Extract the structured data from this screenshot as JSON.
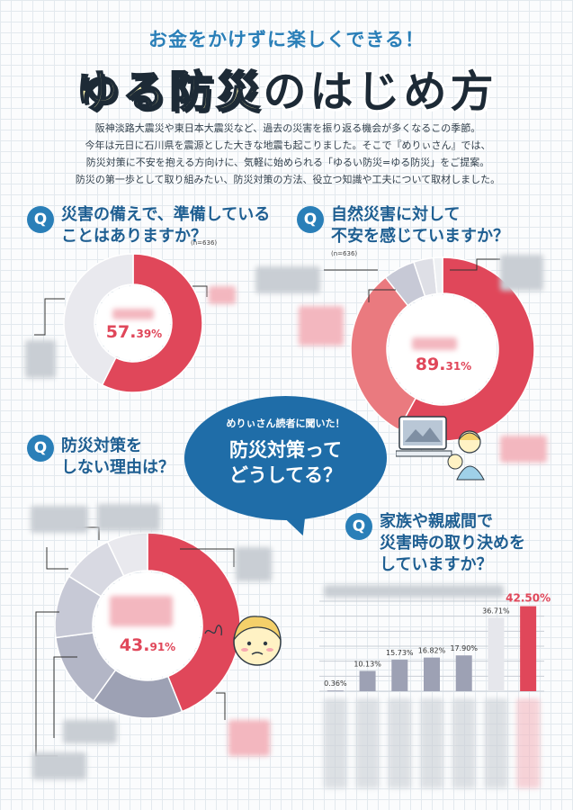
{
  "header": {
    "subtitle": "お金をかけずに楽しくできる！",
    "title_highlight": "ゆる防災",
    "title_rest": "のはじめ方",
    "intro_lines": [
      "阪神淡路大震災や東日本大震災など、過去の災害を振り返る機会が多くなるこの季節。",
      "今年は元日に石川県を震源とした大きな地震も起こりました。そこで『めりぃさん』では、",
      "防災対策に不安を抱える方向けに、気軽に始められる「ゆるい防災=ゆる防災」をご提案。",
      "防災の第一歩として取り組みたい、防災対策の方法、役立つ知識や工夫について取材しました。"
    ]
  },
  "center_bubble": {
    "small": "めりぃさん読者に聞いた！",
    "big_line1": "防災対策って",
    "big_line2": "どうしてる？"
  },
  "colors": {
    "accent_red": "#e0475a",
    "accent_pink": "#ea7a7f",
    "accent_blue": "#2a7fb8",
    "gray_light": "#e9e9ee",
    "gray_mid": "#c7c9d6",
    "gray_dark": "#9da1b4"
  },
  "q_badge": "Q",
  "questions": {
    "q1": {
      "line1": "災害の備えで、準備している",
      "line2": "ことはありますか？",
      "n": "(n=636)"
    },
    "q2": {
      "line1": "自然災害に対して",
      "line2": "不安を感じていますか？",
      "n": "(n=636)"
    },
    "q3": {
      "line1": "防災対策を",
      "line2": "しない理由は？"
    },
    "q4": {
      "line1": "家族や親戚間で",
      "line2": "災害時の取り決めを",
      "line3": "していますか？"
    }
  },
  "chart_data": [
    {
      "type": "pie",
      "title": "災害の備えで、準備していることはありますか？",
      "slices": [
        {
          "label": "",
          "value": 57.39,
          "color": "#e0475a"
        },
        {
          "label": "",
          "value": 42.61,
          "color": "#e9e9ee"
        }
      ],
      "center_label_main": "57.",
      "center_label_sub": "39%"
    },
    {
      "type": "pie",
      "title": "自然災害に対して不安を感じていますか？",
      "slices": [
        {
          "label": "",
          "value": 58.0,
          "color": "#e0475a"
        },
        {
          "label": "",
          "value": 31.31,
          "color": "#ea7a7f"
        },
        {
          "label": "",
          "value": 5.6,
          "color": "#c7c9d6"
        },
        {
          "label": "",
          "value": 3.5,
          "color": "#dedfe6"
        },
        {
          "label": "",
          "value": 1.59,
          "color": "#eef0f3"
        }
      ],
      "center_label_main": "89.",
      "center_label_sub": "31%"
    },
    {
      "type": "pie",
      "title": "防災対策をしない理由は？",
      "slices": [
        {
          "label": "",
          "value": 43.91,
          "color": "#e0475a"
        },
        {
          "label": "",
          "value": 16.0,
          "color": "#9da1b4"
        },
        {
          "label": "",
          "value": 13.0,
          "color": "#b3b6c6"
        },
        {
          "label": "",
          "value": 11.0,
          "color": "#c7c9d6"
        },
        {
          "label": "",
          "value": 9.0,
          "color": "#d8d9e2"
        },
        {
          "label": "",
          "value": 7.09,
          "color": "#e9e9ee"
        }
      ],
      "center_label_main": "43.",
      "center_label_sub": "91%"
    },
    {
      "type": "bar",
      "title": "家族や親戚間で災害時の取り決めをしていますか？",
      "categories": [
        "",
        "",
        "",
        "",
        "",
        "",
        ""
      ],
      "values": [
        0.36,
        10.13,
        15.73,
        16.82,
        17.9,
        36.71,
        42.5
      ],
      "value_labels": [
        "0.36%",
        "10.13%",
        "15.73%",
        "16.82%",
        "17.90%",
        "36.71%",
        "42.50%"
      ],
      "ylim": [
        0,
        45
      ]
    }
  ]
}
